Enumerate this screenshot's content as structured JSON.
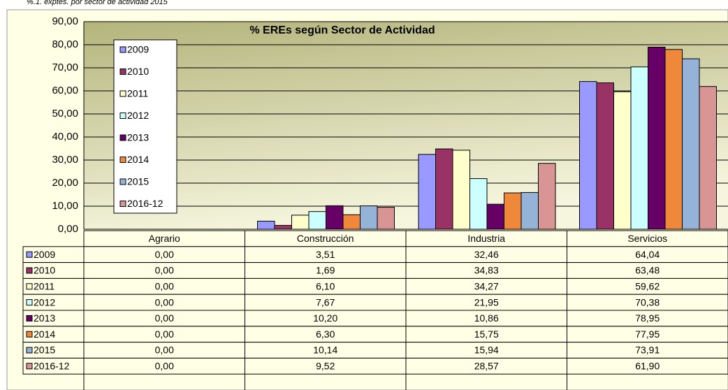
{
  "chart_data": {
    "type": "bar",
    "subtitle": "%.1. exptes. por sector de actividad 2015",
    "title": "% EREs según Sector de Actividad",
    "categories": [
      "Agrario",
      "Construcción",
      "Industria",
      "Servicios"
    ],
    "series": [
      {
        "name": "2009",
        "color": "#9999ff",
        "values": [
          0,
          3.51,
          32.46,
          64.04
        ],
        "value_labels": [
          "0,00",
          "3,51",
          "32,46",
          "64,04"
        ]
      },
      {
        "name": "2010",
        "color": "#993366",
        "values": [
          0,
          1.69,
          34.83,
          63.48
        ],
        "value_labels": [
          "0,00",
          "1,69",
          "34,83",
          "63,48"
        ]
      },
      {
        "name": "2011",
        "color": "#ffffcc",
        "values": [
          0,
          6.1,
          34.27,
          59.62
        ],
        "value_labels": [
          "0,00",
          "6,10",
          "34,27",
          "59,62"
        ]
      },
      {
        "name": "2012",
        "color": "#ccffff",
        "values": [
          0,
          7.67,
          21.95,
          70.38
        ],
        "value_labels": [
          "0,00",
          "7,67",
          "21,95",
          "70,38"
        ]
      },
      {
        "name": "2013",
        "color": "#660066",
        "values": [
          0,
          10.2,
          10.86,
          78.95
        ],
        "value_labels": [
          "0,00",
          "10,20",
          "10,86",
          "78,95"
        ]
      },
      {
        "name": "2014",
        "color": "#f0883c",
        "values": [
          0,
          6.3,
          15.75,
          77.95
        ],
        "value_labels": [
          "0,00",
          "6,30",
          "15,75",
          "77,95"
        ]
      },
      {
        "name": "2015",
        "color": "#95b3d7",
        "values": [
          0,
          10.14,
          15.94,
          73.91
        ],
        "value_labels": [
          "0,00",
          "10,14",
          "15,94",
          "73,91"
        ]
      },
      {
        "name": "2016-12",
        "color": "#d99594",
        "values": [
          0,
          9.52,
          28.57,
          61.9
        ],
        "value_labels": [
          "0,00",
          "9,52",
          "28,57",
          "61,90"
        ]
      }
    ],
    "ylim": [
      0,
      90
    ],
    "yticks": [
      {
        "value": 0,
        "label": "0,00"
      },
      {
        "value": 10,
        "label": "10,00"
      },
      {
        "value": 20,
        "label": "20,00"
      },
      {
        "value": 30,
        "label": "30,00"
      },
      {
        "value": 40,
        "label": "40,00"
      },
      {
        "value": 50,
        "label": "50,00"
      },
      {
        "value": 60,
        "label": "60,00"
      },
      {
        "value": 70,
        "label": "70,00"
      },
      {
        "value": 80,
        "label": "80,00"
      },
      {
        "value": 90,
        "label": "90,00"
      }
    ],
    "grid": true
  }
}
